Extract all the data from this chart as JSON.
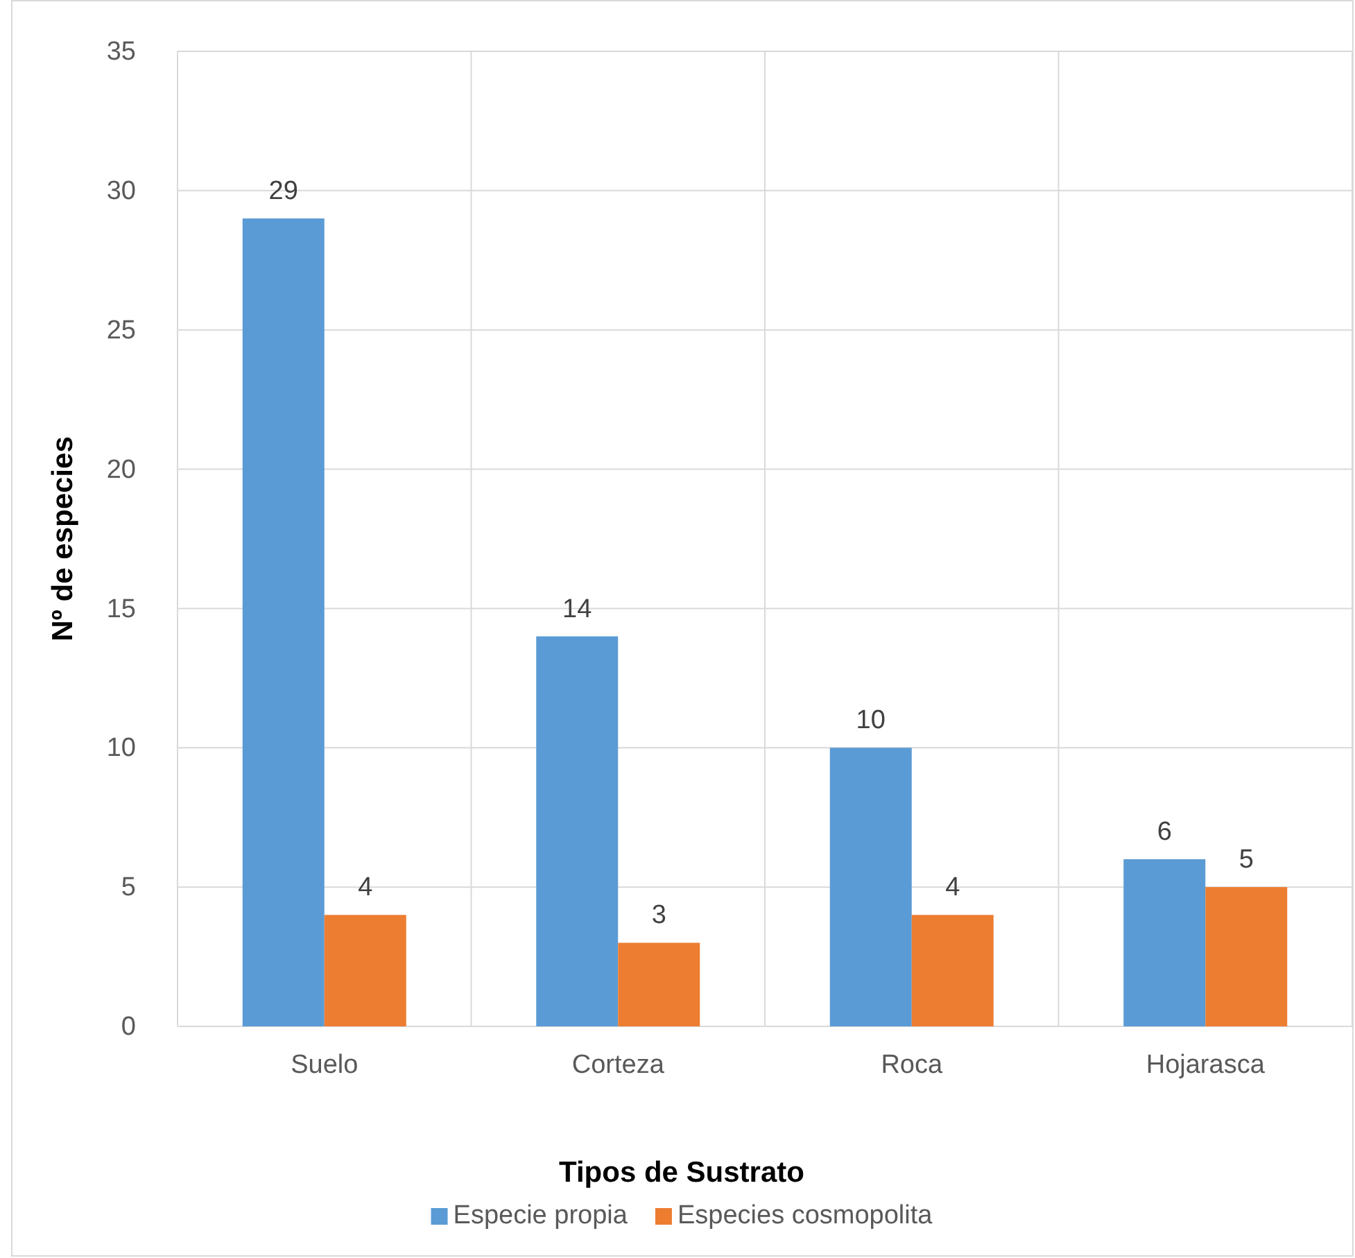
{
  "chart_data": {
    "type": "bar",
    "xlabel": "Tipos de Sustrato",
    "ylabel": "Nº de especies",
    "categories": [
      "Suelo",
      "Corteza",
      "Roca",
      "Hojarasca"
    ],
    "series": [
      {
        "name": "Especie propia",
        "color": "#5b9bd5",
        "values": [
          29,
          14,
          10,
          6
        ]
      },
      {
        "name": "Especies cosmopolita",
        "color": "#ed7d31",
        "values": [
          4,
          3,
          4,
          5
        ]
      }
    ],
    "ylim": [
      0,
      35
    ],
    "yticks": [
      0,
      5,
      10,
      15,
      20,
      25,
      30,
      35
    ],
    "grid": true,
    "legend": "bottom",
    "data_labels": true
  }
}
